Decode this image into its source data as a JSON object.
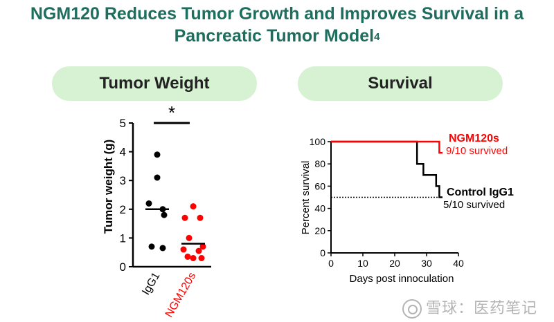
{
  "title_line1": "NGM120 Reduces Tumor Growth and Improves Survival in a",
  "title_line2": "Pancreatic Tumor Model",
  "title_superscript": "4",
  "watermark": "雪球：医药笔记",
  "chart_data": [
    {
      "type": "scatter",
      "title": "Tumor Weight",
      "ylabel": "Tumor weight  (g)",
      "xlabel": "",
      "ylim": [
        0,
        5
      ],
      "yticks": [
        0,
        1,
        2,
        3,
        4,
        5
      ],
      "significance": "*",
      "groups": [
        {
          "name": "IgG1",
          "color": "#000000",
          "mean": 2.0,
          "values": [
            3.9,
            3.1,
            2.2,
            2.0,
            1.8,
            0.7,
            0.65
          ]
        },
        {
          "name": "NGM120s",
          "color": "#ff0000",
          "mean": 0.8,
          "values": [
            2.1,
            1.7,
            1.7,
            1.0,
            0.7,
            0.6,
            0.55,
            0.35,
            0.3,
            0.3
          ]
        }
      ]
    },
    {
      "type": "line",
      "title": "Survival",
      "xlabel": "Days post innoculation",
      "ylabel": "Percent survival",
      "xlim": [
        0,
        40
      ],
      "ylim": [
        0,
        100
      ],
      "xticks": [
        0,
        10,
        20,
        30,
        40
      ],
      "yticks": [
        0,
        20,
        40,
        60,
        80,
        100
      ],
      "reference_line": 50,
      "series": [
        {
          "name": "NGM120s",
          "color": "#ff0000",
          "annotation": "9/10 survived",
          "points": [
            [
              0,
              100
            ],
            [
              27,
              100
            ],
            [
              34,
              100
            ],
            [
              34,
              90
            ],
            [
              35,
              90
            ]
          ]
        },
        {
          "name": "Control IgG1",
          "color": "#000000",
          "annotation": "5/10 survived",
          "points": [
            [
              0,
              100
            ],
            [
              27,
              100
            ],
            [
              27,
              80
            ],
            [
              29,
              80
            ],
            [
              29,
              70
            ],
            [
              33,
              70
            ],
            [
              33,
              60
            ],
            [
              34,
              60
            ],
            [
              34,
              50
            ],
            [
              35,
              50
            ]
          ]
        }
      ]
    }
  ]
}
